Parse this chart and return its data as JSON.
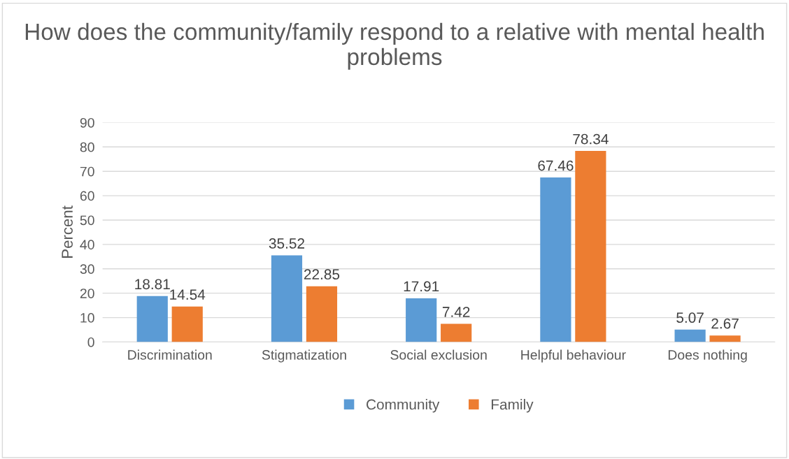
{
  "chart_data": {
    "type": "bar",
    "title": "How does the community/family respond to a relative with mental health problems",
    "categories": [
      "Discrimination",
      "Stigmatization",
      "Social exclusion",
      "Helpful behaviour",
      "Does nothing"
    ],
    "series": [
      {
        "name": "Community",
        "color": "#5b9bd5",
        "values": [
          18.81,
          35.52,
          17.91,
          67.46,
          5.07
        ]
      },
      {
        "name": "Family",
        "color": "#ed7d31",
        "values": [
          14.54,
          22.85,
          7.42,
          78.34,
          2.67
        ]
      }
    ],
    "ylabel": "Percent",
    "ylim": [
      0,
      90
    ],
    "yticks": [
      0,
      10,
      20,
      30,
      40,
      50,
      60,
      70,
      80,
      90
    ],
    "grid": "y",
    "legend": "bottom",
    "data_labels": true
  }
}
